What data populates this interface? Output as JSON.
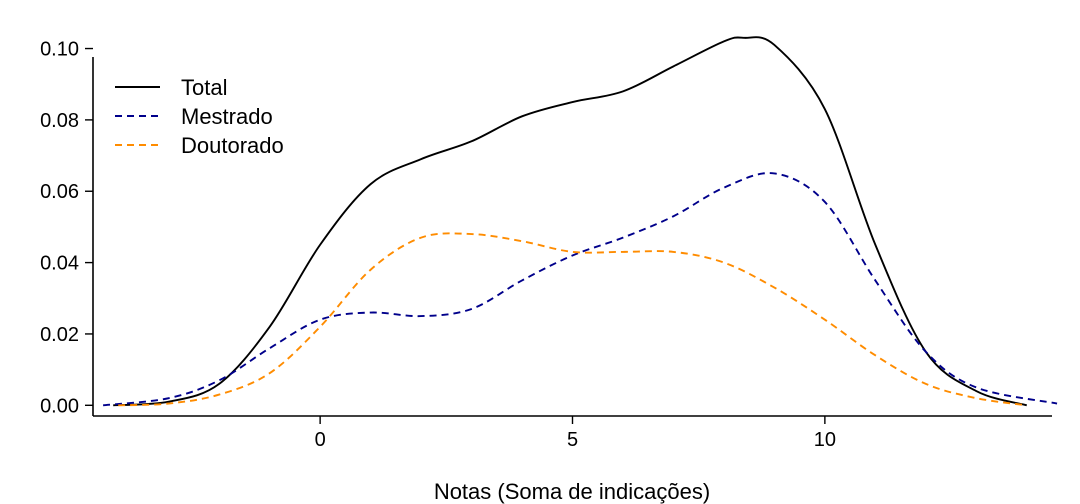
{
  "chart_data": {
    "type": "line",
    "title": "",
    "xlabel": "Notas (Soma de indicações)",
    "ylabel": "",
    "xlim": [
      -4.5,
      14.5
    ],
    "ylim": [
      -0.003,
      0.108
    ],
    "x_ticks": [
      0,
      5,
      10
    ],
    "x_tick_labels": [
      "0",
      "5",
      "10"
    ],
    "y_ticks": [
      0.0,
      0.02,
      0.04,
      0.06,
      0.08,
      0.1
    ],
    "y_tick_labels": [
      "0.00",
      "0.02",
      "0.04",
      "0.06",
      "0.08",
      "0.10"
    ],
    "grid": false,
    "legend_position": "top-left",
    "series": [
      {
        "name": "Total",
        "color": "#000000",
        "dash": "solid",
        "x": [
          -4.1,
          -3,
          -2,
          -1,
          0,
          1,
          2,
          3,
          4,
          5,
          6,
          7,
          8,
          8.4,
          9,
          10,
          11,
          12,
          13,
          14
        ],
        "y": [
          0.0,
          0.001,
          0.006,
          0.022,
          0.045,
          0.062,
          0.069,
          0.074,
          0.081,
          0.085,
          0.088,
          0.095,
          0.102,
          0.103,
          0.101,
          0.083,
          0.045,
          0.015,
          0.004,
          0.0
        ]
      },
      {
        "name": "Mestrado",
        "color": "#00008B",
        "dash": "dashed",
        "x": [
          -4.3,
          -3,
          -2,
          -1,
          0,
          1,
          2,
          3,
          4,
          5,
          6,
          7,
          8,
          9,
          10,
          11,
          12,
          13,
          14.6
        ],
        "y": [
          0.0,
          0.002,
          0.007,
          0.016,
          0.024,
          0.026,
          0.025,
          0.027,
          0.035,
          0.042,
          0.047,
          0.053,
          0.061,
          0.065,
          0.057,
          0.035,
          0.015,
          0.005,
          0.0005
        ]
      },
      {
        "name": "Doutorado",
        "color": "#FF8C00",
        "dash": "dashed",
        "x": [
          -4,
          -3,
          -2,
          -1,
          0,
          1,
          2,
          3,
          4,
          5,
          6,
          7,
          8,
          9,
          10,
          11,
          12,
          13,
          14
        ],
        "y": [
          0.0,
          0.0005,
          0.003,
          0.009,
          0.022,
          0.038,
          0.047,
          0.048,
          0.046,
          0.043,
          0.043,
          0.043,
          0.04,
          0.033,
          0.024,
          0.014,
          0.006,
          0.002,
          0.0
        ]
      }
    ]
  }
}
